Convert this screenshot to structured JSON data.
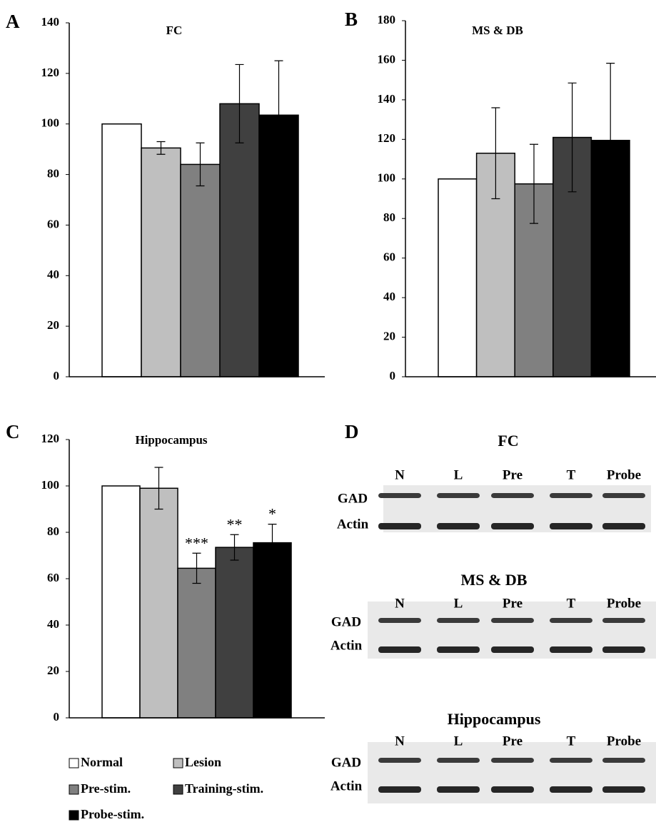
{
  "chart_data": [
    {
      "type": "bar",
      "panel": "A",
      "title": "FC",
      "values": [
        100,
        90.5,
        84,
        108,
        103.5
      ],
      "errors": [
        null,
        2.5,
        8.5,
        15.5,
        21.5
      ],
      "ylim": [
        0,
        140
      ],
      "yticks": [
        0,
        20,
        40,
        60,
        80,
        100,
        120,
        140
      ]
    },
    {
      "type": "bar",
      "panel": "B",
      "title": "MS & DB",
      "values": [
        100,
        113,
        97.5,
        121,
        119.5
      ],
      "errors": [
        null,
        23,
        20,
        27.5,
        39
      ],
      "ylim": [
        0,
        180
      ],
      "yticks": [
        0,
        20,
        40,
        60,
        80,
        100,
        120,
        140,
        160,
        180
      ]
    },
    {
      "type": "bar",
      "panel": "C",
      "title": "Hippocampus",
      "values": [
        100,
        99,
        64.5,
        73.5,
        75.5
      ],
      "errors": [
        null,
        9,
        6.5,
        5.5,
        8
      ],
      "annotations": [
        null,
        null,
        "***",
        "**",
        "*"
      ],
      "ylim": [
        0,
        120
      ],
      "yticks": [
        0,
        20,
        40,
        60,
        80,
        100,
        120
      ]
    }
  ],
  "legend": {
    "labels": [
      "Normal",
      "Lesion",
      "Pre-stim.",
      "Training-stim.",
      "Probe-stim."
    ],
    "colors": [
      "#ffffff",
      "#bfbfbf",
      "#808080",
      "#404040",
      "#000000"
    ]
  },
  "blots": {
    "panel": "D",
    "items": [
      {
        "title": "FC",
        "lanes": [
          "N",
          "L",
          "Pre",
          "T",
          "Probe"
        ],
        "rows": [
          "GAD",
          "Actin"
        ]
      },
      {
        "title": "MS & DB",
        "lanes": [
          "N",
          "L",
          "Pre",
          "T",
          "Probe"
        ],
        "rows": [
          "GAD",
          "Actin"
        ]
      },
      {
        "title": "Hippocampus",
        "lanes": [
          "N",
          "L",
          "Pre",
          "T",
          "Probe"
        ],
        "rows": [
          "GAD",
          "Actin"
        ]
      }
    ]
  }
}
